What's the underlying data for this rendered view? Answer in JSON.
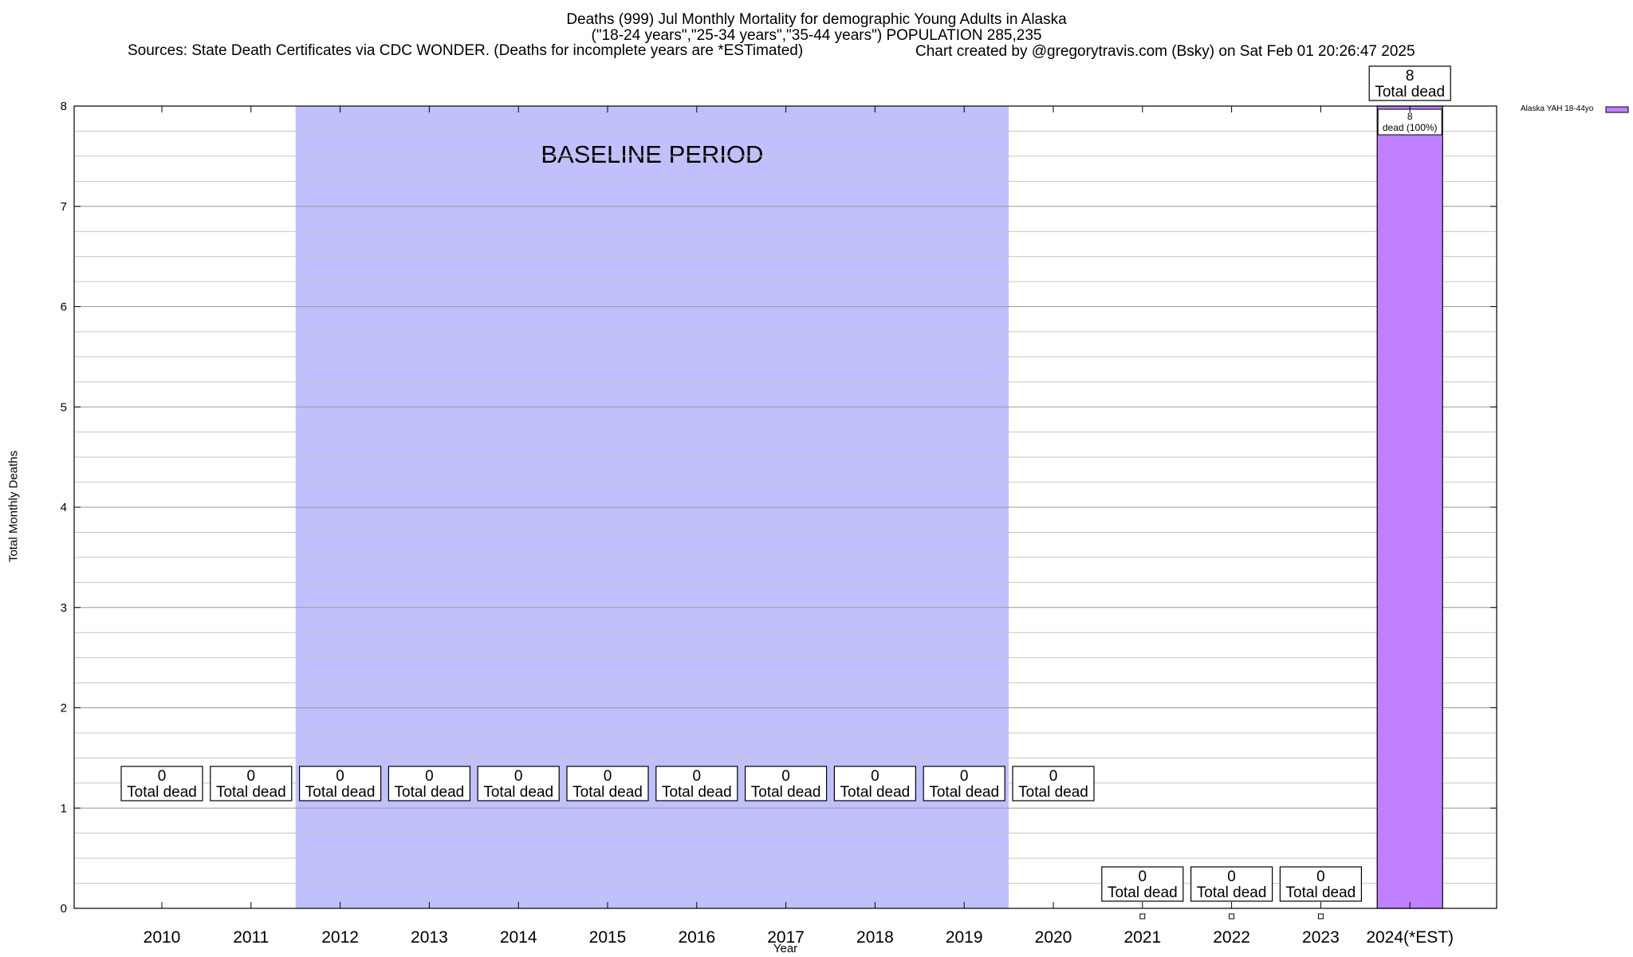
{
  "chart_data": {
    "type": "bar",
    "title": "Deaths (999) Jul Monthly Mortality for demographic Young Adults in Alaska",
    "subtitle": "(\"18-24 years\",\"25-34 years\",\"35-44 years\") POPULATION 285,235",
    "sources": "Sources: State Death Certificates via CDC WONDER. (Deaths for incomplete years are *ESTimated)",
    "credit": "Chart created by @gregorytravis.com (Bsky) on Sat Feb 01 20:26:47 2025",
    "xlabel": "Year",
    "ylabel": "Total Monthly Deaths",
    "categories": [
      "2010",
      "2011",
      "2012",
      "2013",
      "2014",
      "2015",
      "2016",
      "2017",
      "2018",
      "2019",
      "2020",
      "2021",
      "2022",
      "2023",
      "2024(*EST)"
    ],
    "series": [
      {
        "name": "Alaska YAH 18-44yo",
        "color": "#c080ff",
        "values": [
          0,
          0,
          0,
          0,
          0,
          0,
          0,
          0,
          0,
          0,
          0,
          0,
          0,
          0,
          8
        ]
      }
    ],
    "total_labels": [
      {
        "value": "0",
        "text": "Total dead"
      },
      {
        "value": "0",
        "text": "Total dead"
      },
      {
        "value": "0",
        "text": "Total dead"
      },
      {
        "value": "0",
        "text": "Total dead"
      },
      {
        "value": "0",
        "text": "Total dead"
      },
      {
        "value": "0",
        "text": "Total dead"
      },
      {
        "value": "0",
        "text": "Total dead"
      },
      {
        "value": "0",
        "text": "Total dead"
      },
      {
        "value": "0",
        "text": "Total dead"
      },
      {
        "value": "0",
        "text": "Total dead"
      },
      {
        "value": "0",
        "text": "Total dead"
      },
      {
        "value": "0",
        "text": "Total dead"
      },
      {
        "value": "0",
        "text": "Total dead"
      },
      {
        "value": "0",
        "text": "Total dead"
      },
      {
        "value": "8",
        "text": "Total dead"
      }
    ],
    "segment_labels": [
      {
        "category": "2024(*EST)",
        "value": "8",
        "text": "dead (100%)"
      }
    ],
    "baseline_period": {
      "label": "BASELINE PERIOD",
      "from": "2012",
      "to": "2019",
      "color": "#c0c0fc"
    },
    "ylim": [
      0,
      8
    ],
    "yticks": [
      0,
      1,
      2,
      3,
      4,
      5,
      6,
      7,
      8
    ],
    "grid": true,
    "legend_position": "top-right"
  }
}
